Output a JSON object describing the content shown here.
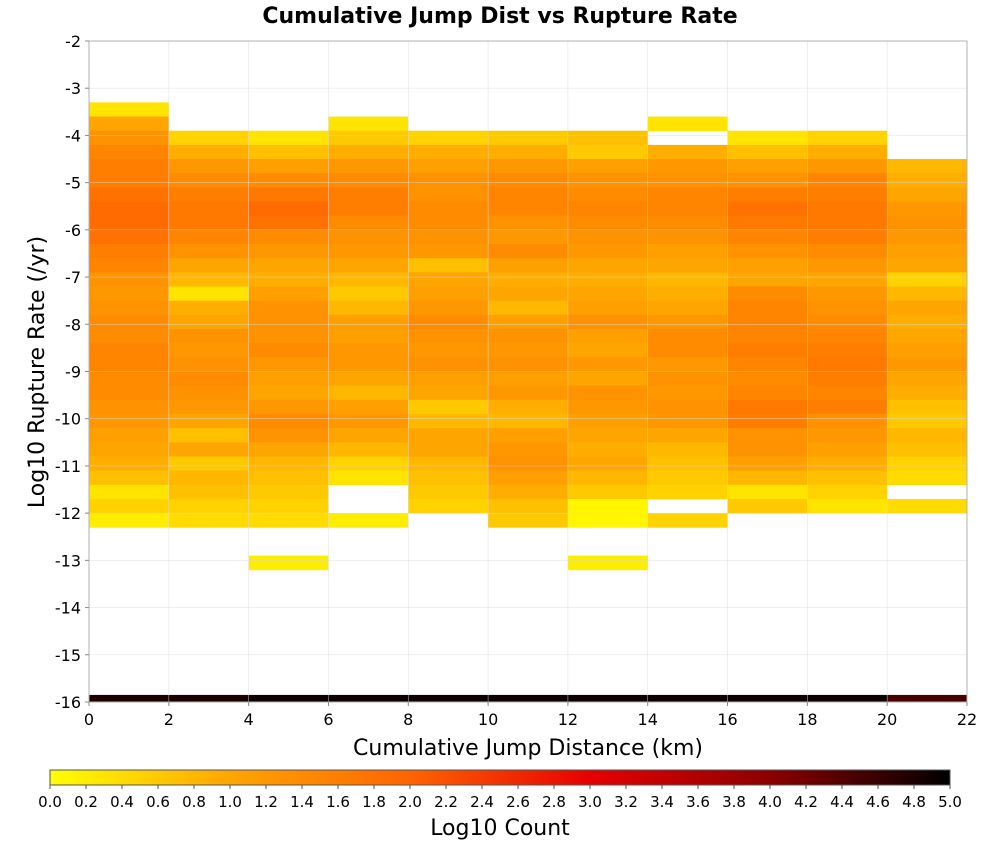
{
  "chart_data": {
    "type": "heatmap",
    "title": "Cumulative Jump Dist vs Rupture Rate",
    "xlabel": "Cumulative Jump Distance (km)",
    "ylabel": "Log10 Rupture Rate (/yr)",
    "xlim": [
      0,
      22
    ],
    "ylim": [
      -16,
      -2
    ],
    "x_ticks": [
      "0",
      "2",
      "4",
      "6",
      "8",
      "10",
      "12",
      "14",
      "16",
      "18",
      "20",
      "22"
    ],
    "y_ticks": [
      "-2",
      "-3",
      "-4",
      "-5",
      "-6",
      "-7",
      "-8",
      "-9",
      "-10",
      "-11",
      "-12",
      "-13",
      "-14",
      "-15",
      "-16"
    ],
    "grid": true,
    "x_bin_width": 2,
    "y_bin_height": 0.3,
    "colorbar": {
      "label": "Log10 Count",
      "range": [
        0,
        5
      ],
      "ticks": [
        "0.0",
        "0.2",
        "0.4",
        "0.6",
        "0.8",
        "1.0",
        "1.2",
        "1.4",
        "1.6",
        "1.8",
        "2.0",
        "2.2",
        "2.4",
        "2.6",
        "2.8",
        "3.0",
        "3.2",
        "3.4",
        "3.6",
        "3.8",
        "4.0",
        "4.2",
        "4.4",
        "4.6",
        "4.8",
        "5.0"
      ],
      "colors": [
        "#ffff00",
        "#ffa500",
        "#ff6400",
        "#e60000",
        "#8c0000",
        "#000000"
      ]
    },
    "columns": [
      {
        "x0": 0,
        "y_top": -3.3,
        "values": [
          0.3,
          1.0,
          1.3,
          1.5,
          1.6,
          1.6,
          1.8,
          1.9,
          1.9,
          1.8,
          1.6,
          1.5,
          1.3,
          1.2,
          1.3,
          1.4,
          1.4,
          1.5,
          1.5,
          1.4,
          1.4,
          1.3,
          1.2,
          1.1,
          1.0,
          0.9,
          0.7,
          0.3,
          0.5,
          0.2
        ]
      },
      {
        "x0": 2,
        "y_top": -3.9,
        "values": [
          0.5,
          0.9,
          1.2,
          1.4,
          1.6,
          1.7,
          1.7,
          1.5,
          1.3,
          1.0,
          0.8,
          0.3,
          0.9,
          1.0,
          1.3,
          1.2,
          1.3,
          1.4,
          1.3,
          1.2,
          1.0,
          0.7,
          1.0,
          0.6,
          0.8,
          0.7,
          0.5,
          0.4
        ]
      },
      {
        "x0": 4,
        "y_top": -3.9,
        "values": [
          0.3,
          0.7,
          1.1,
          1.4,
          1.7,
          1.9,
          1.8,
          1.4,
          1.2,
          1.0,
          0.9,
          1.1,
          1.3,
          1.3,
          1.3,
          1.4,
          1.2,
          1.1,
          1.0,
          1.2,
          1.4,
          1.3,
          1.0,
          0.8,
          0.7,
          0.6,
          0.5,
          0.4,
          -1,
          -1,
          0.2
        ]
      },
      {
        "x0": 6,
        "y_top": -3.6,
        "values": [
          0.3,
          0.6,
          0.9,
          1.2,
          1.4,
          1.6,
          1.6,
          1.4,
          1.3,
          1.2,
          1.0,
          0.8,
          0.6,
          0.8,
          1.1,
          1.1,
          1.2,
          1.2,
          1.0,
          0.8,
          1.1,
          1.2,
          1.0,
          0.8,
          0.5,
          0.3,
          -1,
          -1,
          0.2
        ]
      },
      {
        "x0": 8,
        "y_top": -3.9,
        "values": [
          0.5,
          0.9,
          1.1,
          1.3,
          1.3,
          1.4,
          1.4,
          1.3,
          1.2,
          0.7,
          1.0,
          1.1,
          1.2,
          1.4,
          1.3,
          1.2,
          1.3,
          1.1,
          1.0,
          0.6,
          0.8,
          1.0,
          1.0,
          0.8,
          0.7,
          0.6,
          0.5
        ]
      },
      {
        "x0": 10,
        "y_top": -3.9,
        "values": [
          0.6,
          0.9,
          1.2,
          1.4,
          1.5,
          1.5,
          1.3,
          1.2,
          1.4,
          1.1,
          0.9,
          1.0,
          0.8,
          1.1,
          1.3,
          1.2,
          1.3,
          1.1,
          1.2,
          0.9,
          0.8,
          1.1,
          1.2,
          1.3,
          1.1,
          0.9,
          0.7,
          0.6
        ]
      },
      {
        "x0": 12,
        "y_top": -3.9,
        "values": [
          0.7,
          0.6,
          1.1,
          1.3,
          1.4,
          1.5,
          1.4,
          1.3,
          1.2,
          1.0,
          0.9,
          1.0,
          1.1,
          1.3,
          1.1,
          1.0,
          1.2,
          1.0,
          1.3,
          1.2,
          1.1,
          1.0,
          0.9,
          1.0,
          0.8,
          0.6,
          0.1,
          0.1,
          -1,
          -1,
          0.2
        ]
      },
      {
        "x0": 14,
        "y_top": -3.6,
        "values": [
          0.3,
          -1,
          0.9,
          1.2,
          1.3,
          1.5,
          1.5,
          1.4,
          1.3,
          1.1,
          1.0,
          0.8,
          0.9,
          1.0,
          1.2,
          1.4,
          1.4,
          1.2,
          1.3,
          1.2,
          1.3,
          1.2,
          1.0,
          0.8,
          0.7,
          0.6,
          0.5,
          -1,
          0.5
        ]
      },
      {
        "x0": 16,
        "y_top": -3.9,
        "values": [
          0.3,
          0.7,
          1.1,
          1.3,
          1.6,
          1.8,
          1.7,
          1.5,
          1.3,
          1.1,
          1.0,
          1.4,
          1.5,
          1.5,
          1.5,
          1.6,
          1.5,
          1.4,
          1.5,
          1.7,
          1.6,
          1.3,
          1.3,
          1.1,
          0.8,
          0.3,
          0.6
        ]
      },
      {
        "x0": 18,
        "y_top": -3.9,
        "values": [
          0.5,
          0.9,
          1.2,
          1.5,
          1.6,
          1.7,
          1.7,
          1.6,
          1.4,
          1.2,
          1.0,
          1.2,
          1.3,
          1.4,
          1.5,
          1.6,
          1.7,
          1.6,
          1.5,
          1.6,
          1.3,
          1.2,
          1.1,
          0.9,
          0.7,
          0.5,
          0.3
        ]
      },
      {
        "x0": 20,
        "y_top": -4.5,
        "values": [
          0.8,
          0.9,
          1.0,
          1.2,
          1.3,
          1.2,
          1.1,
          1.0,
          0.5,
          0.8,
          1.0,
          0.9,
          1.0,
          1.1,
          1.2,
          1.0,
          0.9,
          0.7,
          0.6,
          0.8,
          0.7,
          0.5,
          0.4,
          -1,
          0.4
        ]
      }
    ],
    "bottom_row": {
      "y0": -16,
      "y1": -15.85,
      "column_values": [
        4.8,
        4.8,
        4.9,
        4.9,
        4.9,
        4.9,
        4.9,
        4.9,
        4.9,
        4.9,
        4.5
      ]
    }
  }
}
